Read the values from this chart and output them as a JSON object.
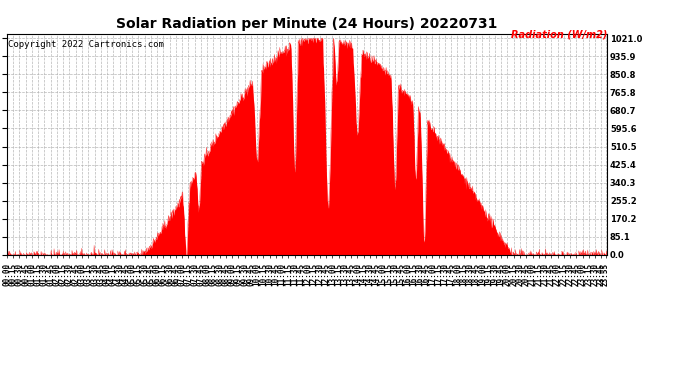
{
  "title": "Solar Radiation per Minute (24 Hours) 20220731",
  "copyright_text": "Copyright 2022 Cartronics.com",
  "ylabel": "Radiation (W/m2)",
  "ylabel_color": "#ff0000",
  "fill_color": "#ff0000",
  "line_color": "#ff0000",
  "background_color": "#ffffff",
  "grid_color": "#b0b0b0",
  "ytick_labels": [
    0.0,
    85.1,
    170.2,
    255.2,
    340.3,
    425.4,
    510.5,
    595.6,
    680.7,
    765.8,
    850.8,
    935.9,
    1021.0
  ],
  "ymax": 1021.0,
  "ymin": 0.0,
  "minutes_per_day": 1440,
  "x_label_interval_minutes": 15,
  "title_fontsize": 10,
  "axis_label_fontsize": 7,
  "tick_fontsize": 5.5,
  "copyright_fontsize": 6.5
}
